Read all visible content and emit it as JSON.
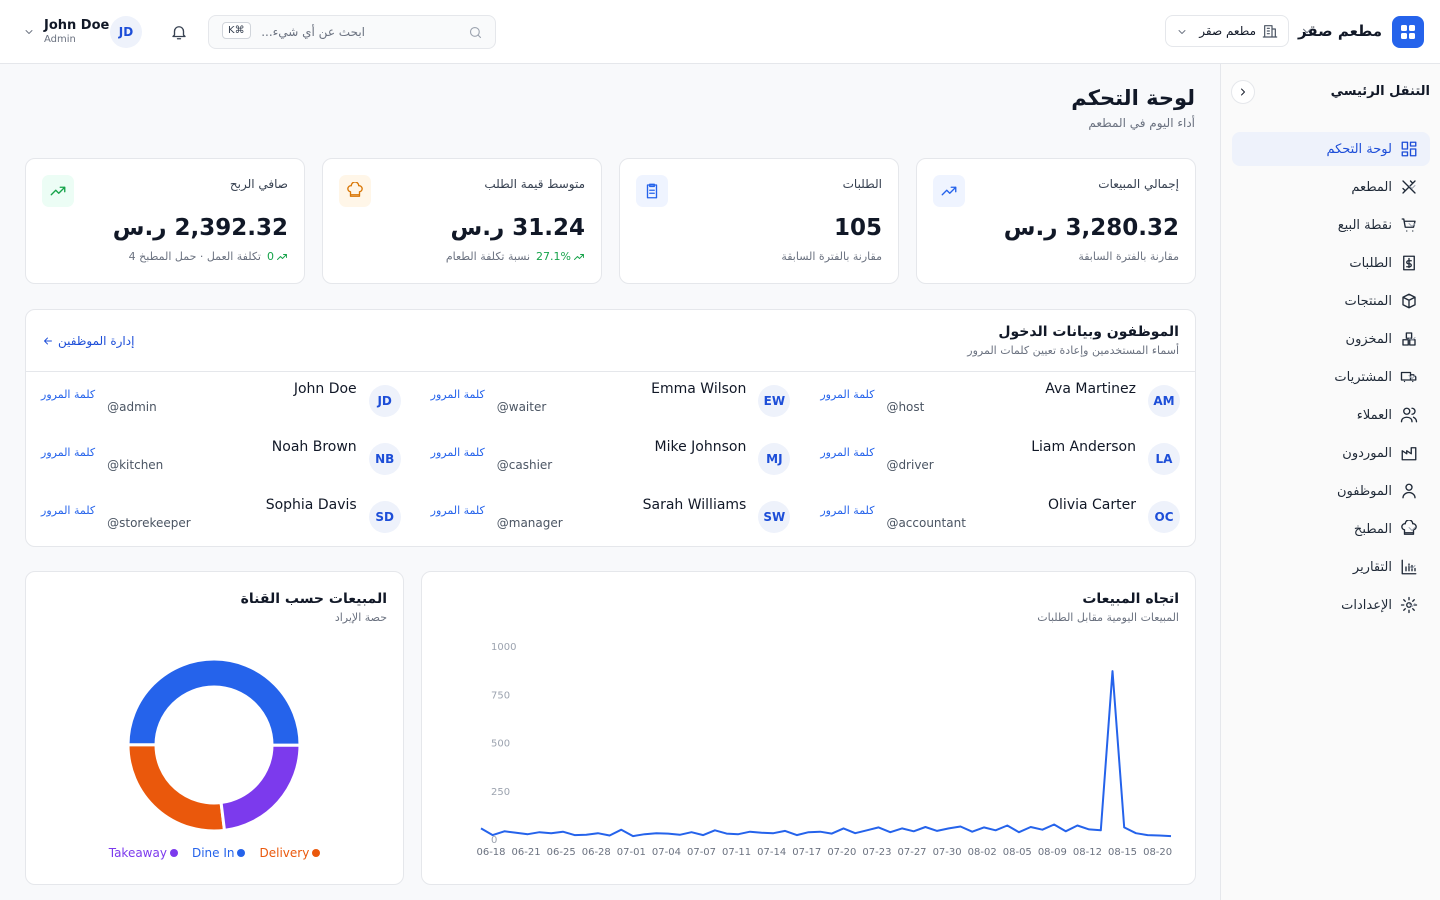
{
  "header": {
    "brand": "مطعم صقر",
    "branch": "مطعم صقر",
    "search_placeholder": "ابحث عن أي شيء...",
    "shortcut": "⌘K",
    "user_name": "John Doe",
    "user_role": "Admin",
    "user_initials": "JD"
  },
  "sidebar": {
    "title": "التنقل الرئيسي",
    "items": [
      {
        "label": "لوحة التحكم",
        "active": true,
        "submenu": false
      },
      {
        "label": "المطعم",
        "submenu": true
      },
      {
        "label": "نقطة البيع",
        "submenu": true
      },
      {
        "label": "الطلبات",
        "submenu": false
      },
      {
        "label": "المنتجات",
        "submenu": false
      },
      {
        "label": "المخزون",
        "submenu": true
      },
      {
        "label": "المشتريات",
        "submenu": true
      },
      {
        "label": "العملاء",
        "submenu": false
      },
      {
        "label": "الموردون",
        "submenu": false
      },
      {
        "label": "الموظفون",
        "submenu": false
      },
      {
        "label": "المطبخ",
        "submenu": true
      },
      {
        "label": "التقارير",
        "submenu": true
      },
      {
        "label": "الإعدادات",
        "submenu": true
      }
    ]
  },
  "page": {
    "title": "لوحة التحكم",
    "subtitle": "أداء اليوم في المطعم"
  },
  "kpis": [
    {
      "label": "إجمالي المبيعات",
      "value": "3,280.32 ر.س",
      "note": "مقارنة بالفترة السابقة"
    },
    {
      "label": "الطلبات",
      "value": "105",
      "note": "مقارنة بالفترة السابقة"
    },
    {
      "label": "متوسط قيمة الطلب",
      "value": "31.24 ر.س",
      "change": "27.1%",
      "note": "نسبة تكلفة الطعام"
    },
    {
      "label": "صافي الربح",
      "value": "2,392.32 ر.س",
      "change": "0",
      "note": "تكلفة العمل · حمل المطبخ 4"
    }
  ],
  "staff": {
    "title": "الموظفون وبيانات الدخول",
    "subtitle": "أسماء المستخدمين وإعادة تعيين كلمات المرور",
    "manage_link": "إدارة الموظفين",
    "reset_label": "كلمة المرور",
    "members": [
      {
        "name": "Ava Martinez",
        "username": "@host",
        "initials": "AM"
      },
      {
        "name": "Emma Wilson",
        "username": "@waiter",
        "initials": "EW"
      },
      {
        "name": "John Doe",
        "username": "@admin",
        "initials": "JD"
      },
      {
        "name": "Liam Anderson",
        "username": "@driver",
        "initials": "LA"
      },
      {
        "name": "Mike Johnson",
        "username": "@cashier",
        "initials": "MJ"
      },
      {
        "name": "Noah Brown",
        "username": "@kitchen",
        "initials": "NB"
      },
      {
        "name": "Olivia Carter",
        "username": "@accountant",
        "initials": "OC"
      },
      {
        "name": "Sarah Williams",
        "username": "@manager",
        "initials": "SW"
      },
      {
        "name": "Sophia Davis",
        "username": "@storekeeper",
        "initials": "SD"
      }
    ]
  },
  "chart_data": [
    {
      "type": "line",
      "title": "اتجاه المبيعات",
      "subtitle": "المبيعات اليومية مقابل الطلبات",
      "color": "#2563eb",
      "grid": false,
      "categories": [
        "06-18",
        null,
        null,
        "06-21",
        null,
        null,
        "06-25",
        null,
        null,
        "06-28",
        null,
        null,
        "07-01",
        null,
        null,
        "07-04",
        null,
        null,
        "07-07",
        null,
        null,
        "07-11",
        null,
        null,
        "07-14",
        null,
        null,
        "07-17",
        null,
        null,
        "07-20",
        null,
        null,
        "07-23",
        null,
        null,
        "07-27",
        null,
        null,
        "07-30",
        null,
        null,
        "08-02",
        null,
        null,
        "08-05",
        null,
        null,
        "08-09",
        null,
        null,
        "08-12",
        null,
        null,
        "08-15",
        null,
        null,
        "08-20",
        null,
        null
      ],
      "values": [
        55,
        20,
        40,
        32,
        25,
        35,
        30,
        38,
        20,
        22,
        30,
        18,
        48,
        15,
        25,
        30,
        28,
        22,
        35,
        20,
        45,
        28,
        25,
        38,
        32,
        30,
        42,
        20,
        35,
        38,
        28,
        55,
        30,
        45,
        60,
        35,
        55,
        40,
        62,
        42,
        55,
        65,
        38,
        60,
        45,
        70,
        35,
        62,
        48,
        75,
        40,
        70,
        50,
        45,
        870,
        60,
        30,
        20,
        18,
        15
      ],
      "ylim": [
        0,
        1000
      ],
      "yticks": [
        0,
        250,
        500,
        750,
        1000
      ]
    },
    {
      "type": "pie",
      "title": "المبيعات حسب القناة",
      "subtitle": "حصة الإيراد",
      "categories": [
        "Delivery",
        "Dine In",
        "Takeaway"
      ],
      "values": [
        27,
        50,
        23
      ],
      "colors": [
        "#ea580c",
        "#2563eb",
        "#7c3aed"
      ]
    }
  ]
}
